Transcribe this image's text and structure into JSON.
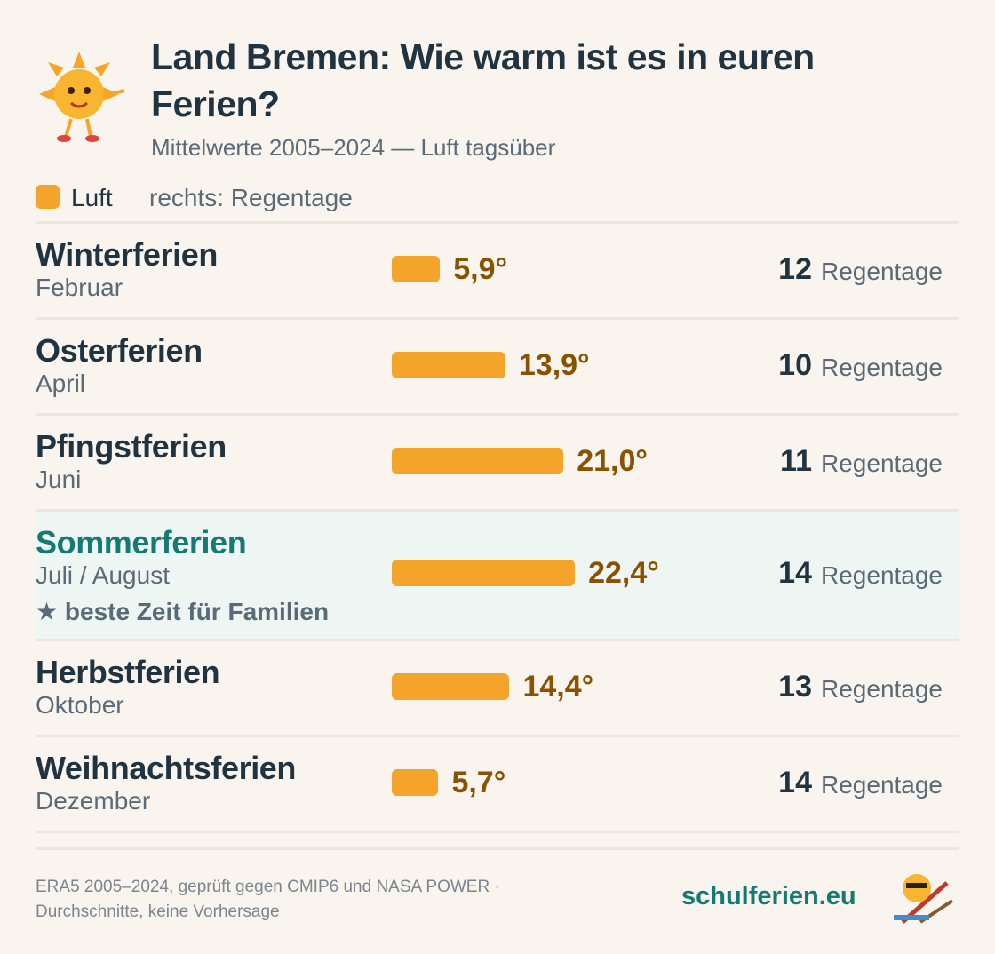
{
  "chart_data": {
    "type": "bar",
    "title": "Land Bremen: Wie warm ist es in euren Ferien?",
    "subtitle": "Mittelwerte 2005–2024 — Luft tagsüber",
    "legend_note": "rechts: Regentage",
    "categories": [
      "Winterferien",
      "Osterferien",
      "Pfingstferien",
      "Sommerferien",
      "Herbstferien",
      "Weihnachtsferien"
    ],
    "periods": [
      "Februar",
      "April",
      "Juni",
      "Juli / August",
      "Oktober",
      "Dezember"
    ],
    "series": [
      {
        "name": "Luft",
        "color": "#f4a42a",
        "values": [
          5.9,
          13.9,
          21.0,
          22.4,
          14.4,
          5.7
        ],
        "value_labels": [
          "5,9°",
          "13,9°",
          "21,0°",
          "22,4°",
          "14,4°",
          "5,7°"
        ]
      }
    ],
    "rain_days": [
      12,
      10,
      11,
      14,
      13,
      14
    ],
    "rain_unit": "Regentage",
    "highlight_index": 3,
    "highlight_color": "#157a73",
    "highlight_label": "beste Zeit für Familien",
    "source": [
      "ERA5 2005–2024, geprüft gegen CMIP6 und NASA POWER ·",
      "Durchschnitte, keine Vorhersage"
    ],
    "brand": "schulferien.eu"
  }
}
